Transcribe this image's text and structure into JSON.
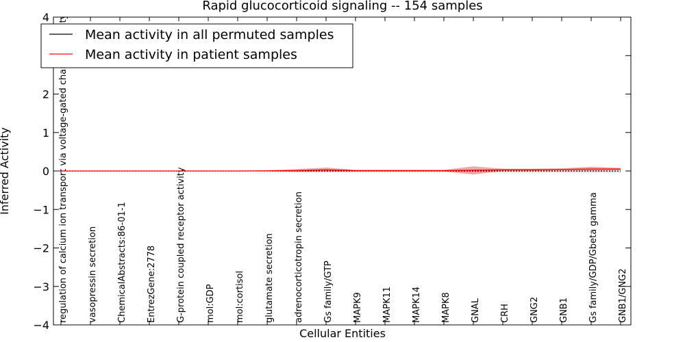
{
  "chart_data": {
    "type": "line",
    "title": "Rapid glucocorticoid signaling -- 154 samples",
    "xlabel": "Cellular Entities",
    "ylabel": "Inferred Activity",
    "ylim": [
      -4,
      4
    ],
    "yticks": [
      -4,
      -3,
      -2,
      -1,
      0,
      1,
      2,
      3,
      4
    ],
    "ytick_labels": [
      "−4",
      "−3",
      "−2",
      "−1",
      "0",
      "1",
      "2",
      "3",
      "4"
    ],
    "categories": [
      "regulation of calcium ion transport via voltage-gated channel activity",
      "vasopressin secretion",
      "ChemicalAbstracts:86-01-1",
      "EntrezGene:2778",
      "G-protein coupled receptor activity",
      "mol:GDP",
      "mol:cortisol",
      "glutamate secretion",
      "adrenocorticotropin secretion",
      "Gs family/GTP",
      "MAPK9",
      "MAPK11",
      "MAPK14",
      "MAPK8",
      "GNAL",
      "CRH",
      "GNG2",
      "GNB1",
      "Gs family/GDP/Gbeta gamma",
      "GNB1/GNG2"
    ],
    "legend_position": "top-left",
    "colors": {
      "permuted": "#000000",
      "patient": "#ff0000",
      "patient_band": "#f08080",
      "permuted_band": "#c8c8c8"
    },
    "series": [
      {
        "name": "Mean activity in all permuted samples",
        "values": [
          0,
          0,
          0,
          0,
          0,
          0,
          0,
          0,
          0,
          0,
          0,
          0,
          0,
          0,
          0,
          0,
          0,
          0,
          0,
          0
        ],
        "band_upper": [
          0,
          0,
          0,
          0,
          0,
          0,
          0,
          0.005,
          0.01,
          0.01,
          0.01,
          0.01,
          0.01,
          0.01,
          0.01,
          0.01,
          0.01,
          0.01,
          0.01,
          0.01
        ],
        "band_lower": [
          0,
          0,
          0,
          0,
          0,
          0,
          0,
          0,
          -0.03,
          -0.03,
          -0.03,
          -0.03,
          -0.03,
          -0.03,
          -0.04,
          -0.04,
          -0.04,
          -0.04,
          -0.04,
          -0.04
        ]
      },
      {
        "name": "Mean activity in patient samples",
        "values": [
          0,
          0,
          0,
          0,
          0,
          0,
          0,
          0.005,
          0.01,
          0.03,
          0.01,
          0.01,
          0.01,
          0.01,
          0.02,
          0.03,
          0.03,
          0.04,
          0.05,
          0.05
        ],
        "band_upper": [
          0,
          0,
          0,
          0,
          0,
          0,
          0,
          0.02,
          0.05,
          0.09,
          0.03,
          0.03,
          0.03,
          0.03,
          0.12,
          0.06,
          0.06,
          0.07,
          0.11,
          0.08
        ],
        "band_lower": [
          0,
          0,
          0,
          0,
          0,
          0,
          0,
          -0.01,
          -0.02,
          -0.02,
          -0.01,
          -0.01,
          -0.01,
          -0.01,
          -0.09,
          0.0,
          0.0,
          0.01,
          0.0,
          0.02
        ]
      }
    ]
  }
}
